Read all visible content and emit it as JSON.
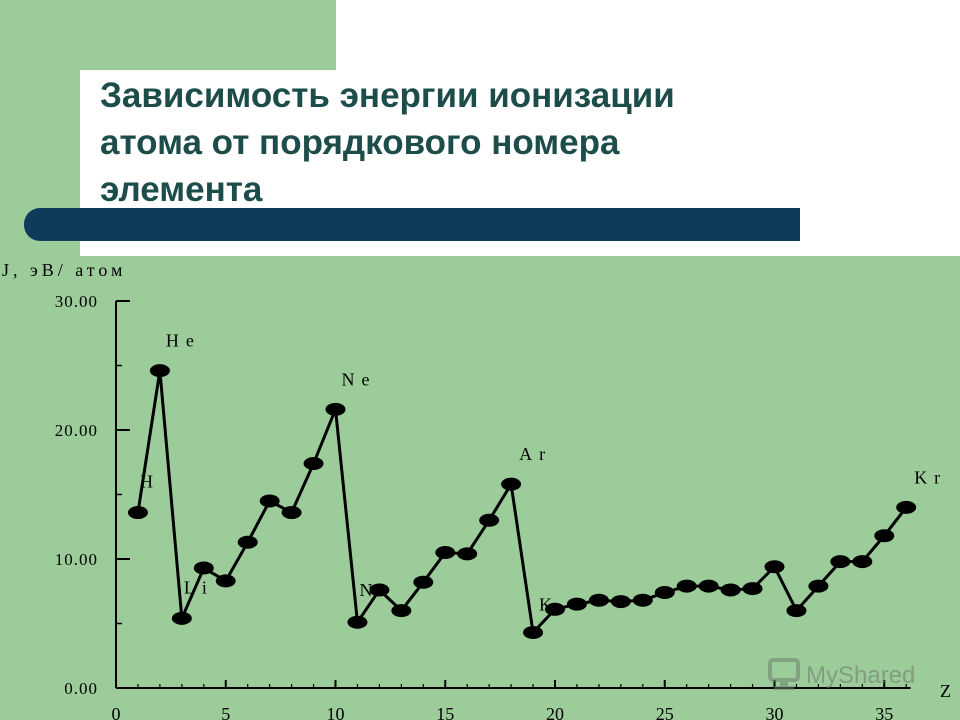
{
  "title": {
    "line1": "Зависимость энергии ионизации",
    "line2": "атома от порядкового номера",
    "line3": "элемента"
  },
  "colors": {
    "background": "#9dcc9b",
    "title_text": "#1d4d4a",
    "title_bar": "#0e3a5c",
    "series": "#000000"
  },
  "watermark": {
    "text": "MyShared",
    "icon": "monitor-icon"
  },
  "chart_data": {
    "type": "line",
    "ylabel": "J, эВ/ атом",
    "xlabel": "Z",
    "xlim": [
      0,
      36
    ],
    "ylim": [
      0,
      30
    ],
    "x_ticks": [
      "0",
      "5",
      "10",
      "15",
      "20",
      "25",
      "30",
      "35"
    ],
    "y_ticks": [
      "0.00",
      "10.00",
      "20.00",
      "30.00"
    ],
    "grid": false,
    "series": [
      {
        "x": [
          1,
          2,
          3,
          4,
          5,
          6,
          7,
          8,
          9,
          10,
          11,
          12,
          13,
          14,
          15,
          16,
          17,
          18,
          19,
          20,
          21,
          22,
          23,
          24,
          25,
          26,
          27,
          28,
          29,
          30,
          31,
          32,
          33,
          34,
          35,
          36
        ],
        "values": [
          13.6,
          24.6,
          5.4,
          9.3,
          8.3,
          11.3,
          14.5,
          13.6,
          17.4,
          21.6,
          5.1,
          7.6,
          6.0,
          8.2,
          10.5,
          10.4,
          13.0,
          15.8,
          4.3,
          6.1,
          6.5,
          6.8,
          6.7,
          6.8,
          7.4,
          7.9,
          7.9,
          7.6,
          7.7,
          9.4,
          6.0,
          7.9,
          9.8,
          9.8,
          11.8,
          14.0
        ]
      }
    ],
    "annotations": [
      {
        "text": "H",
        "x": 1
      },
      {
        "text": "He",
        "x": 2
      },
      {
        "text": "Li",
        "x": 3
      },
      {
        "text": "Ne",
        "x": 10
      },
      {
        "text": "Na",
        "x": 11
      },
      {
        "text": "Ar",
        "x": 18
      },
      {
        "text": "K",
        "x": 19
      },
      {
        "text": "Kr",
        "x": 36
      }
    ]
  }
}
